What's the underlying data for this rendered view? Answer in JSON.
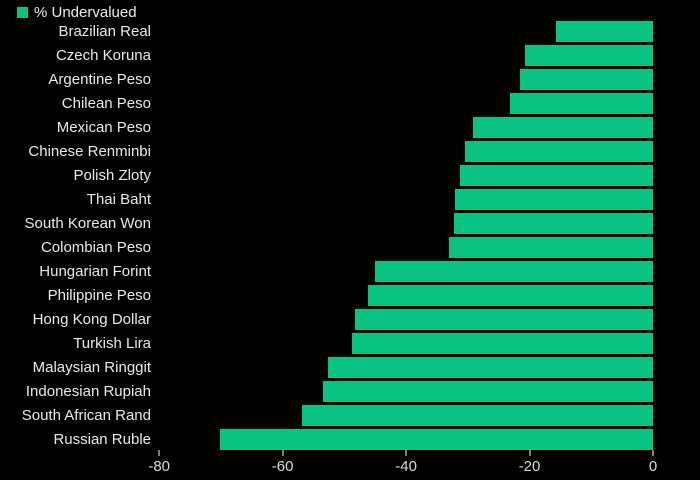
{
  "legend": {
    "label": "% Undervalued",
    "swatch_color": "#08c381"
  },
  "chart_data": {
    "type": "bar",
    "orientation": "horizontal",
    "title": "",
    "xlabel": "",
    "ylabel": "",
    "legend_position": "top-left",
    "background_color": "#000000",
    "bar_color": "#08c381",
    "grid": false,
    "xlim": [
      -81,
      0
    ],
    "x_ticks": [
      -80,
      -60,
      -40,
      -20,
      0
    ],
    "categories": [
      "Brazilian Real",
      "Czech Koruna",
      "Argentine Peso",
      "Chilean Peso",
      "Mexican Peso",
      "Chinese Renminbi",
      "Polish Zloty",
      "Thai Baht",
      "South Korean Won",
      "Colombian Peso",
      "Hungarian Forint",
      "Philippine Peso",
      "Hong Kong Dollar",
      "Turkish Lira",
      "Malaysian Ringgit",
      "Indonesian Rupiah",
      "South African Rand",
      "Russian Ruble"
    ],
    "values": [
      -15.7,
      -20.8,
      -21.6,
      -23.1,
      -29.1,
      -30.4,
      -31.2,
      -32.0,
      -32.3,
      -33.0,
      -45.1,
      -46.1,
      -48.3,
      -48.7,
      -52.7,
      -53.4,
      -56.9,
      -70.1
    ]
  }
}
